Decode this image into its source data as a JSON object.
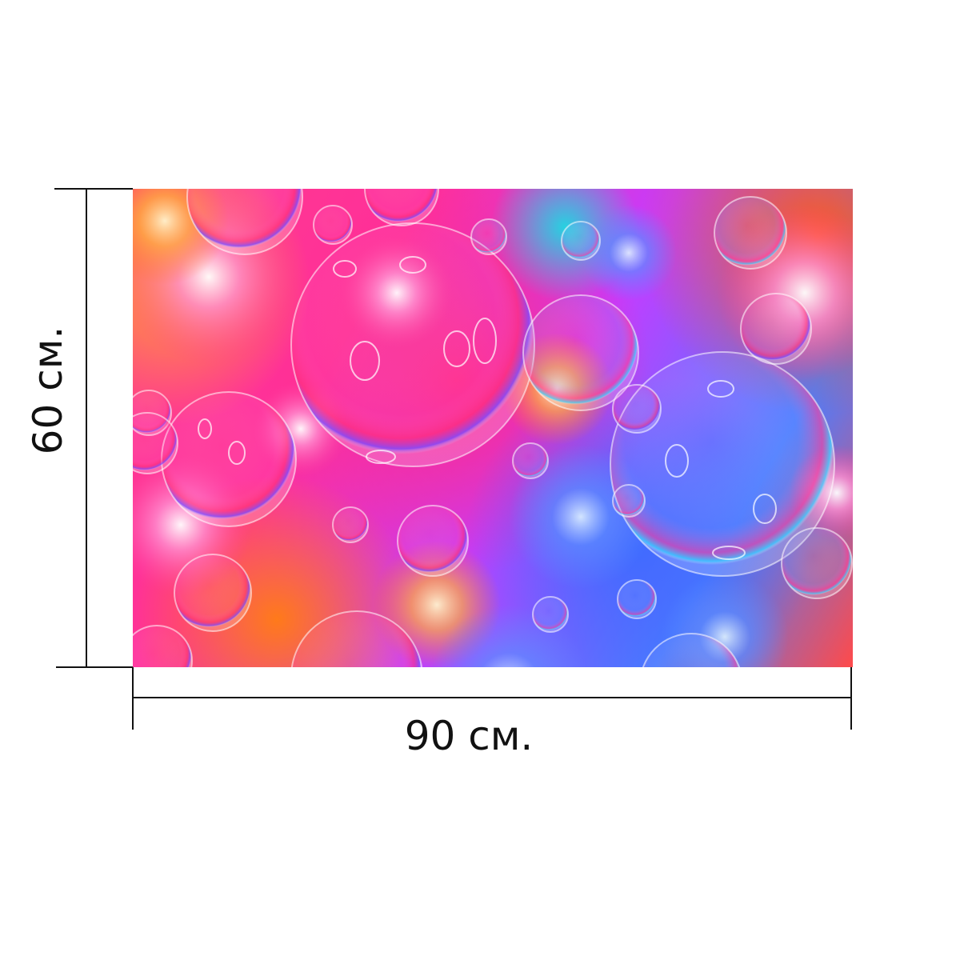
{
  "product": {
    "image_description_icon": "bubbles-artwork",
    "dimensions": {
      "width_label": "90 см.",
      "height_label": "60 см."
    },
    "colors": {
      "line": "#111111",
      "background": "#ffffff"
    }
  }
}
